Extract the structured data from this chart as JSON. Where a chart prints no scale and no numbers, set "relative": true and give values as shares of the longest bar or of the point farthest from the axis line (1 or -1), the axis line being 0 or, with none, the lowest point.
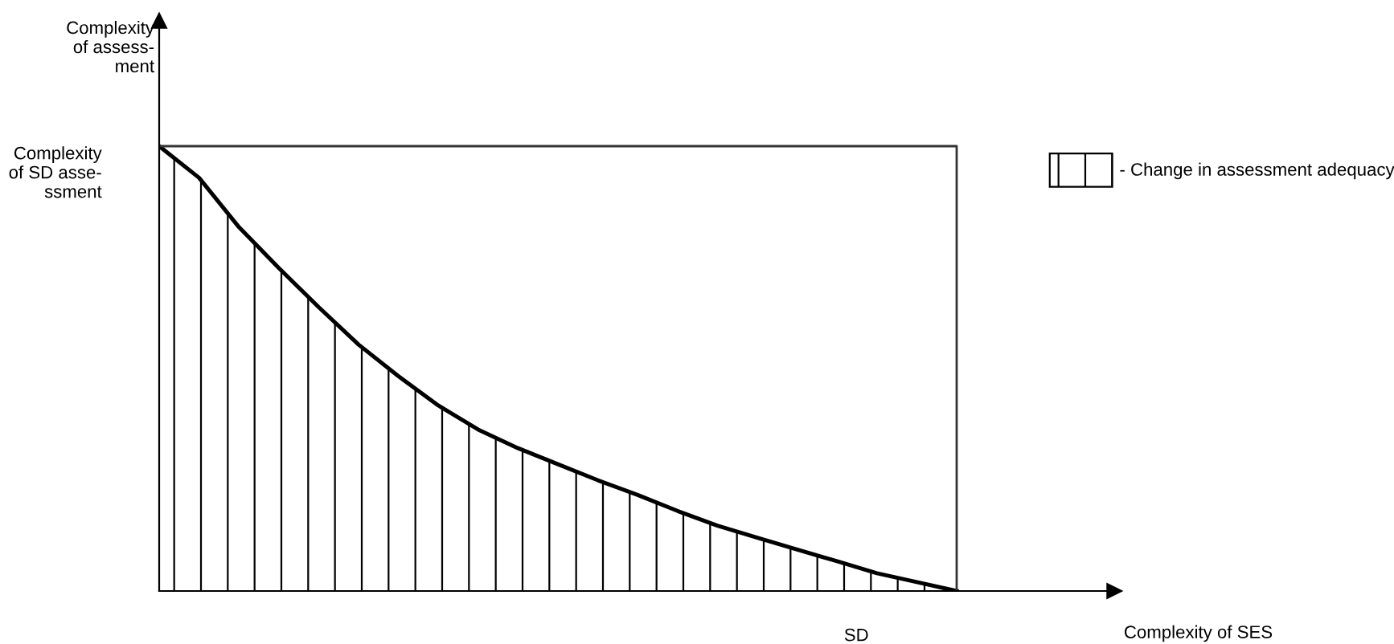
{
  "chart_data": {
    "type": "area",
    "relative": true,
    "ylabel": "Complexity\nof assess-\nment",
    "categories": [
      null,
      null,
      null,
      null,
      null,
      null,
      null,
      null,
      null,
      null,
      null,
      null,
      null,
      null,
      null,
      null,
      null,
      null,
      null,
      null,
      null
    ],
    "series": [
      {
        "name": "- Change in assessment adequacy",
        "color": "#000000",
        "values": [
          1.0,
          0.929,
          0.818,
          0.726,
          0.638,
          0.554,
          0.483,
          0.417,
          0.363,
          0.321,
          0.285,
          0.249,
          0.216,
          0.18,
          0.147,
          0.12,
          0.093,
          0.067,
          0.04,
          0.02,
          0
        ]
      }
    ],
    "annotations": [
      "Complexity\nof SD asse-\nssment",
      "SD",
      "Complexity of SES"
    ],
    "legend": "right",
    "grid": false
  }
}
